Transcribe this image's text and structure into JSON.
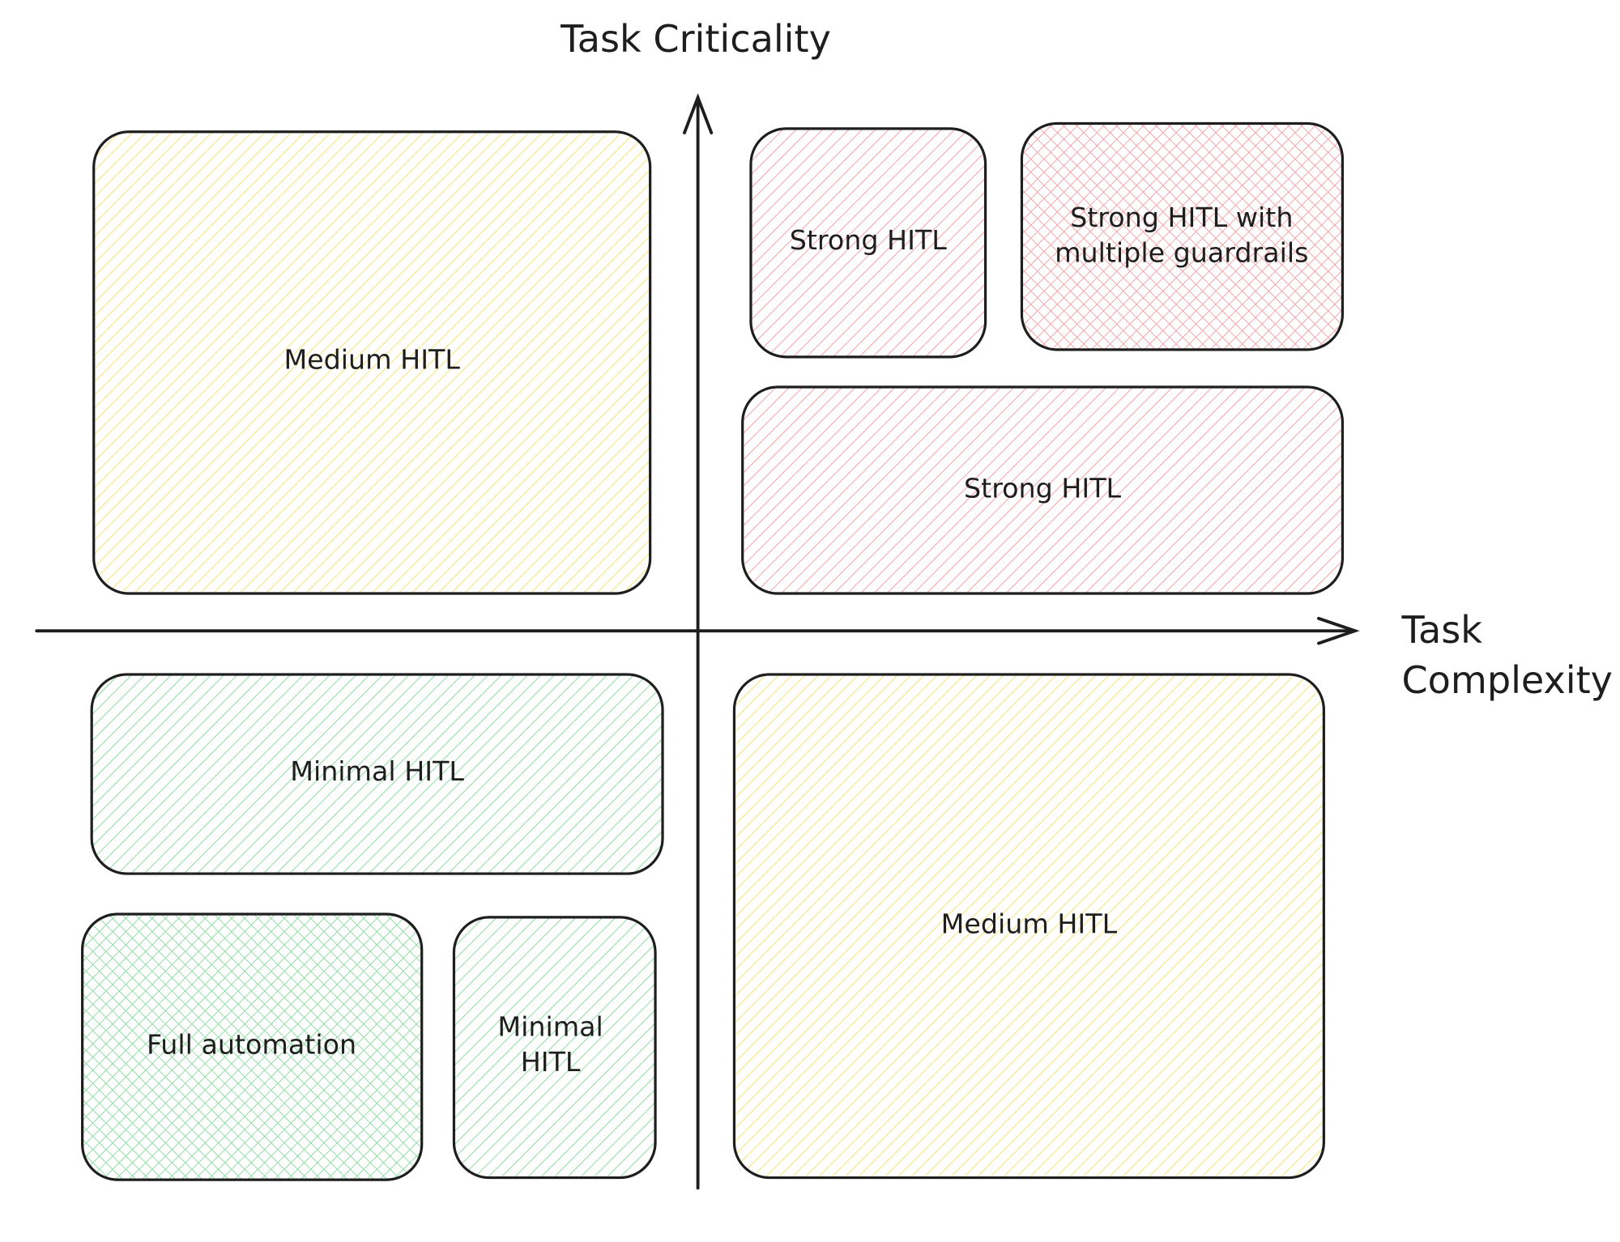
{
  "axes": {
    "y_label": "Task Criticality",
    "x_label": [
      "Task",
      "Complexity"
    ]
  },
  "boxes": [
    {
      "lines": [
        "Medium HITL"
      ]
    },
    {
      "lines": [
        "Strong HITL"
      ]
    },
    {
      "lines": [
        "Strong HITL with",
        "multiple guardrails"
      ]
    },
    {
      "lines": [
        "Strong HITL"
      ]
    },
    {
      "lines": [
        "Minimal HITL"
      ]
    },
    {
      "lines": [
        "Full automation"
      ]
    },
    {
      "lines": [
        "Minimal",
        "HITL"
      ]
    },
    {
      "lines": [
        "Medium HITL"
      ]
    }
  ]
}
